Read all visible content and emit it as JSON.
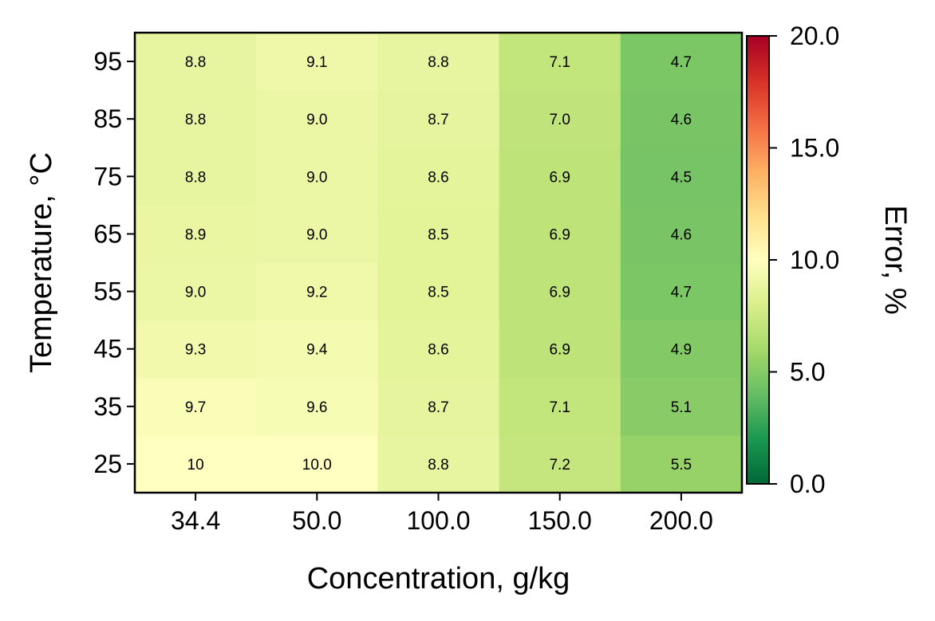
{
  "chart_data": {
    "type": "heatmap",
    "title": "",
    "xlabel": "Concentration, g/kg",
    "ylabel": "Temperature, °C",
    "x_categories": [
      "34.4",
      "50.0",
      "100.0",
      "150.0",
      "200.0"
    ],
    "y_categories": [
      "25",
      "35",
      "45",
      "55",
      "65",
      "75",
      "85",
      "95"
    ],
    "values": [
      [
        10.0,
        10.0,
        8.8,
        7.2,
        5.5
      ],
      [
        9.7,
        9.6,
        8.7,
        7.1,
        5.1
      ],
      [
        9.3,
        9.4,
        8.6,
        6.9,
        4.9
      ],
      [
        9.0,
        9.2,
        8.5,
        6.9,
        4.7
      ],
      [
        8.9,
        9.0,
        8.5,
        6.9,
        4.6
      ],
      [
        8.8,
        9.0,
        8.6,
        6.9,
        4.5
      ],
      [
        8.8,
        9.0,
        8.7,
        7.0,
        4.6
      ],
      [
        8.8,
        9.1,
        8.8,
        7.1,
        4.7
      ]
    ],
    "value_labels": [
      [
        "10",
        "10.0",
        "8.8",
        "7.2",
        "5.5"
      ],
      [
        "9.7",
        "9.6",
        "8.7",
        "7.1",
        "5.1"
      ],
      [
        "9.3",
        "9.4",
        "8.6",
        "6.9",
        "4.9"
      ],
      [
        "9.0",
        "9.2",
        "8.5",
        "6.9",
        "4.7"
      ],
      [
        "8.9",
        "9.0",
        "8.5",
        "6.9",
        "4.6"
      ],
      [
        "8.8",
        "9.0",
        "8.6",
        "6.9",
        "4.5"
      ],
      [
        "8.8",
        "9.0",
        "8.7",
        "7.0",
        "4.6"
      ],
      [
        "8.8",
        "9.1",
        "8.8",
        "7.1",
        "4.7"
      ]
    ],
    "colorbar": {
      "label": "Error, %",
      "range": [
        0,
        20
      ],
      "ticks": [
        "0.0",
        "5.0",
        "10.0",
        "15.0",
        "20.0"
      ],
      "tick_values": [
        0,
        5,
        10,
        15,
        20
      ],
      "colormap": "RdYlGn_r",
      "stops": [
        "#006837",
        "#1a9850",
        "#66bd63",
        "#a6d96a",
        "#d9ef8b",
        "#ffffbf",
        "#fee08b",
        "#fdae61",
        "#f46d43",
        "#d73027",
        "#a50026"
      ]
    }
  }
}
